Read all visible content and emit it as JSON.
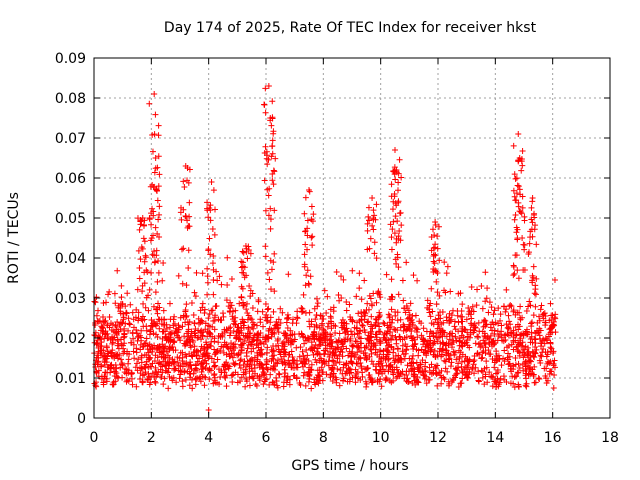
{
  "chart_data": {
    "type": "scatter",
    "title": "Day 174 of 2025, Rate Of TEC Index for receiver hkst",
    "xlabel": "GPS time / hours",
    "ylabel": "ROTI / TECUs",
    "xlim": [
      0,
      18
    ],
    "ylim": [
      0,
      0.09
    ],
    "xticks": [
      0,
      2,
      4,
      6,
      8,
      10,
      12,
      14,
      16,
      18
    ],
    "xtick_labels": [
      "0",
      "2",
      "4",
      "6",
      "8",
      "10",
      "12",
      "14",
      "16",
      "18"
    ],
    "yticks": [
      0,
      0.01,
      0.02,
      0.03,
      0.04,
      0.05,
      0.06,
      0.07,
      0.08,
      0.09
    ],
    "ytick_labels": [
      "0",
      "0.01",
      "0.02",
      "0.03",
      "0.04",
      "0.05",
      "0.06",
      "0.07",
      "0.08",
      "0.09"
    ],
    "grid": true,
    "marker": "+",
    "color": "#ff0000",
    "series": [
      {
        "name": "ROTI",
        "data_range_hours": [
          0,
          16.1
        ],
        "baseline_band": [
          0.005,
          0.025
        ],
        "peaks": [
          {
            "x": 2.1,
            "y": 0.081
          },
          {
            "x": 2.15,
            "y": 0.065
          },
          {
            "x": 3.2,
            "y": 0.063
          },
          {
            "x": 4.1,
            "y": 0.059
          },
          {
            "x": 6.1,
            "y": 0.083
          },
          {
            "x": 6.15,
            "y": 0.075
          },
          {
            "x": 7.5,
            "y": 0.057
          },
          {
            "x": 9.7,
            "y": 0.055
          },
          {
            "x": 10.5,
            "y": 0.067
          },
          {
            "x": 10.55,
            "y": 0.062
          },
          {
            "x": 14.8,
            "y": 0.071
          },
          {
            "x": 14.85,
            "y": 0.065
          },
          {
            "x": 15.3,
            "y": 0.055
          },
          {
            "x": 1.7,
            "y": 0.05
          },
          {
            "x": 11.9,
            "y": 0.049
          },
          {
            "x": 5.3,
            "y": 0.043
          }
        ],
        "minimum": {
          "x": 4.0,
          "y": 0.002
        }
      }
    ]
  }
}
